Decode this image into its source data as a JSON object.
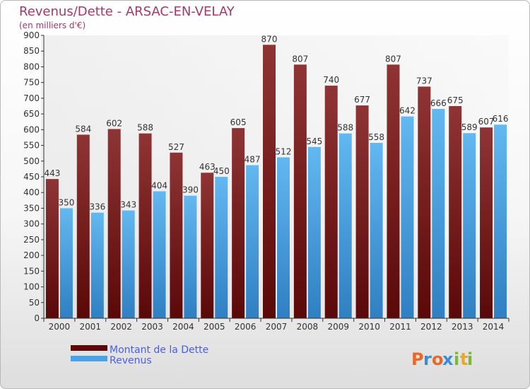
{
  "chart_data": {
    "type": "bar",
    "title": "Revenus/Dette - ARSAC-EN-VELAY",
    "subtitle": "(en milliers d'€)",
    "categories": [
      "2000",
      "2001",
      "2002",
      "2003",
      "2004",
      "2005",
      "2006",
      "2007",
      "2008",
      "2009",
      "2010",
      "2011",
      "2012",
      "2013",
      "2014"
    ],
    "series": [
      {
        "name": "Montant de la Dette",
        "values": [
          443,
          584,
          602,
          588,
          527,
          463,
          605,
          870,
          807,
          740,
          677,
          807,
          737,
          675,
          607
        ],
        "color": "#7a1e1e"
      },
      {
        "name": "Revenus",
        "values": [
          350,
          336,
          343,
          404,
          390,
          450,
          487,
          512,
          545,
          588,
          558,
          642,
          666,
          589,
          616
        ],
        "color": "#4aa3e8"
      }
    ],
    "ylim": [
      0,
      900
    ],
    "ytick_step": 50,
    "grid": false,
    "legend_position": "bottom-left"
  },
  "brand": {
    "letters": [
      "P",
      "r",
      "o",
      "x",
      "i",
      "t",
      "i"
    ],
    "colors": [
      "#e8682a",
      "#3a8ed8",
      "#e8682a",
      "#3a8ed8",
      "#7ab83a",
      "#e8a82a",
      "#7ab83a"
    ]
  }
}
